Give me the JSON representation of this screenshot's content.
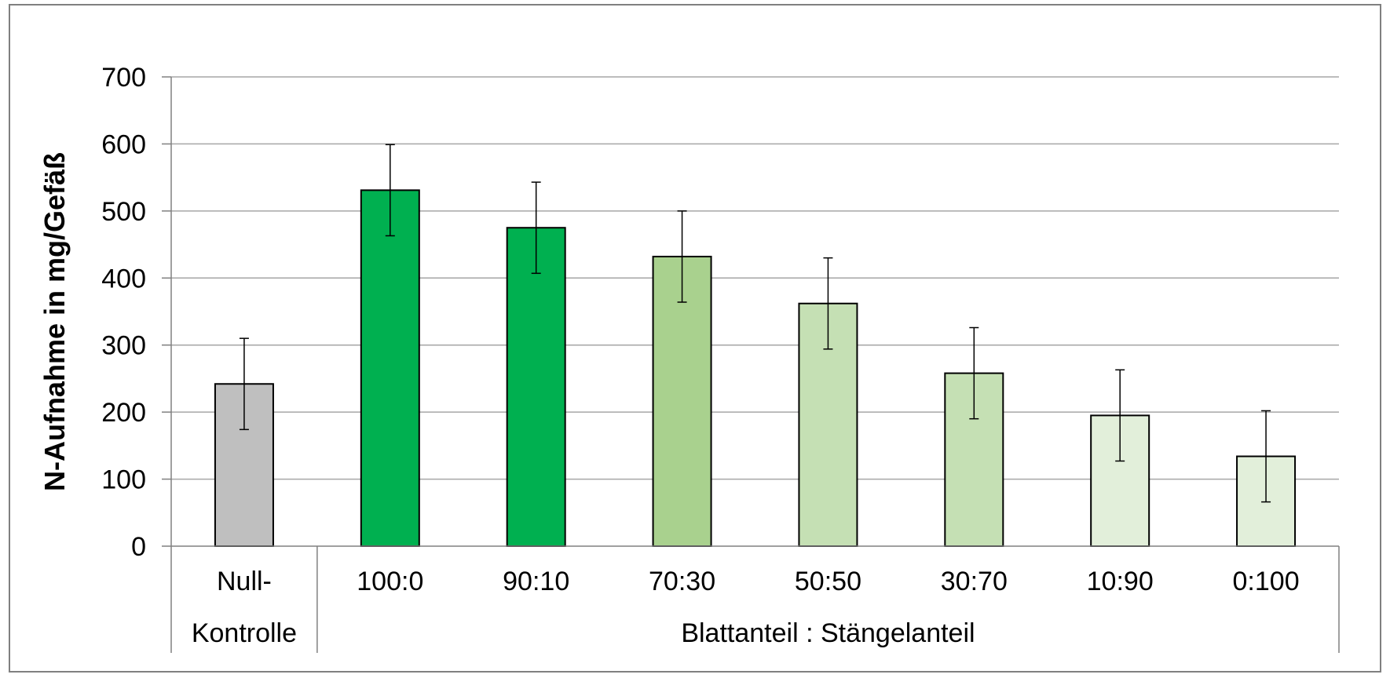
{
  "chart_data": {
    "type": "bar",
    "title": "",
    "ylabel": "N-Aufnahme in mg/Gefäß",
    "ylim": [
      0,
      700
    ],
    "yticks": [
      0,
      100,
      200,
      300,
      400,
      500,
      600,
      700
    ],
    "grid": true,
    "categories": [
      "Null-\nKontrolle",
      "100:0",
      "90:10",
      "70:30",
      "50:50",
      "30:70",
      "10:90",
      "0:100"
    ],
    "category_lines": [
      [
        "Null-",
        "Kontrolle"
      ],
      [
        "100:0"
      ],
      [
        "90:10"
      ],
      [
        "70:30"
      ],
      [
        "50:50"
      ],
      [
        "30:70"
      ],
      [
        "10:90"
      ],
      [
        "0:100"
      ]
    ],
    "group_label": "Blattanteil : Stängelanteil",
    "values": [
      242,
      531,
      475,
      432,
      362,
      258,
      195,
      134
    ],
    "errors": [
      68,
      68,
      68,
      68,
      68,
      68,
      68,
      68
    ],
    "bar_colors": [
      "#bfbfbf",
      "#00b050",
      "#00b050",
      "#a9d18e",
      "#c5e0b4",
      "#c5e0b4",
      "#e2efda",
      "#e2efda"
    ]
  }
}
